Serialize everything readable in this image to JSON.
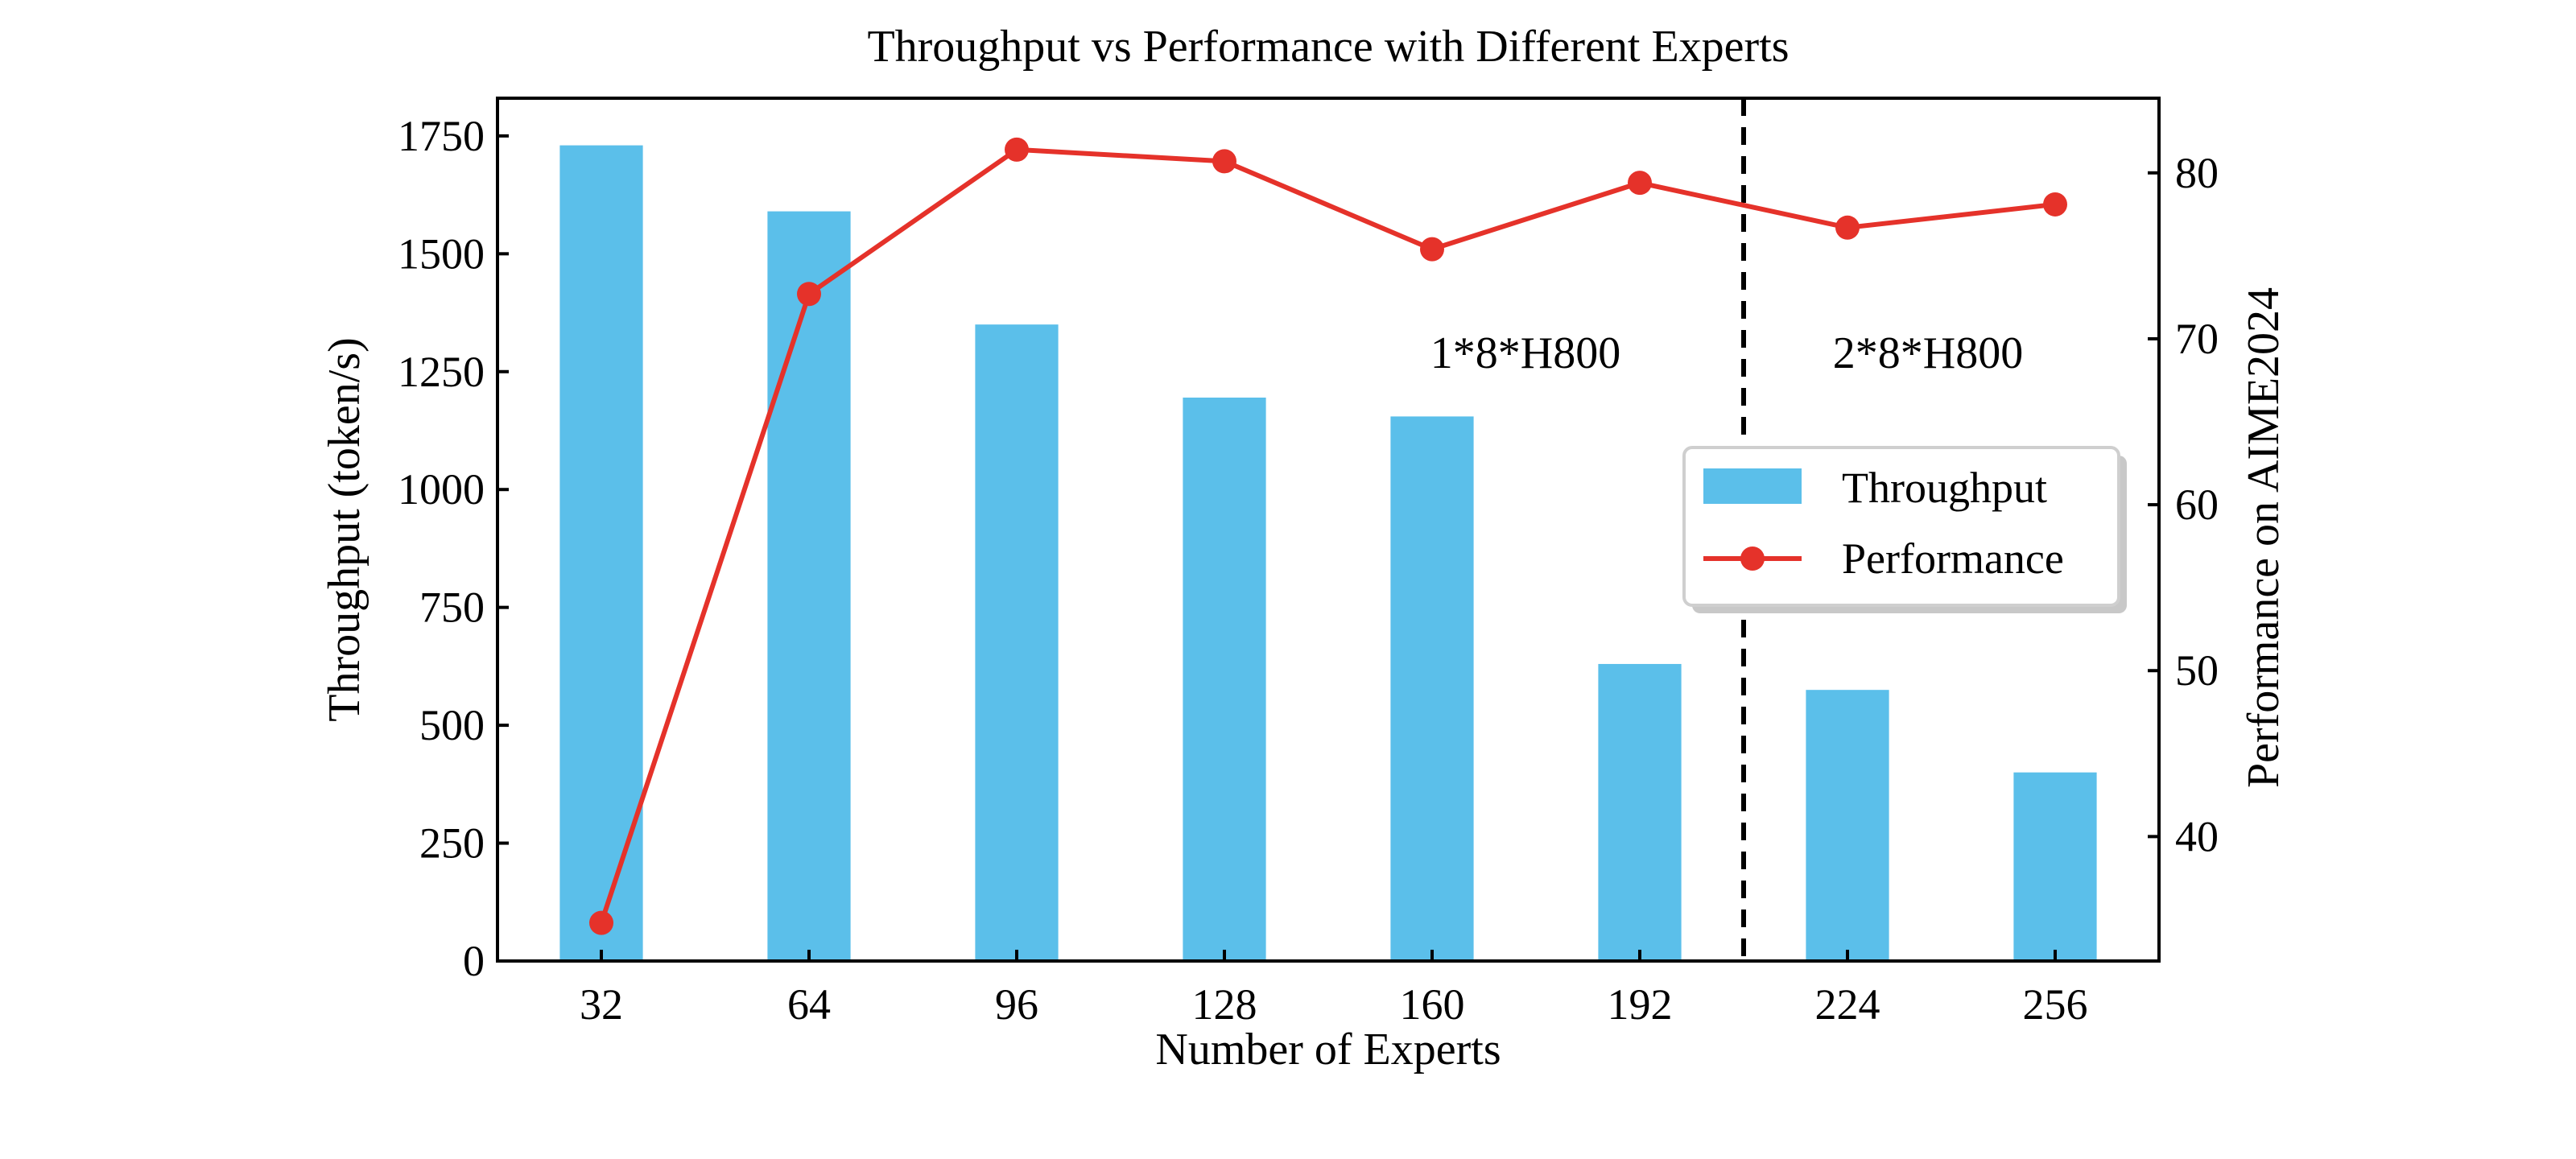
{
  "chart_data": {
    "type": "bar",
    "title": "Throughput vs Performance with Different Experts",
    "xlabel": "Number of Experts",
    "ylabel": "Throughput (token/s)",
    "y2label": "Performance on AIME2024",
    "categories": [
      "32",
      "64",
      "96",
      "128",
      "160",
      "192",
      "224",
      "256"
    ],
    "series": [
      {
        "name": "Throughput",
        "type": "bar",
        "axis": "left",
        "color": "#5BBFEA",
        "values": [
          1730,
          1590,
          1350,
          1195,
          1155,
          630,
          575,
          400
        ]
      },
      {
        "name": "Performance",
        "type": "line",
        "axis": "right",
        "color": "#E5322A",
        "marker": "circle",
        "values": [
          34.8,
          72.7,
          81.4,
          80.7,
          75.4,
          79.4,
          76.7,
          78.1
        ]
      }
    ],
    "ylim": [
      0,
      1750
    ],
    "y_display_max": 1830,
    "yticks": [
      0,
      250,
      500,
      750,
      1000,
      1250,
      1500,
      1750
    ],
    "y2lim": [
      32.5,
      84.5
    ],
    "y2ticks": [
      40,
      50,
      60,
      70,
      80
    ],
    "divider_position": 5.5,
    "annotations": [
      "1*8*H800",
      "2*8*H800"
    ],
    "legend": {
      "placement": "center-right",
      "shadow": true,
      "entries": [
        "Throughput",
        "Performance"
      ]
    },
    "grid": false
  }
}
